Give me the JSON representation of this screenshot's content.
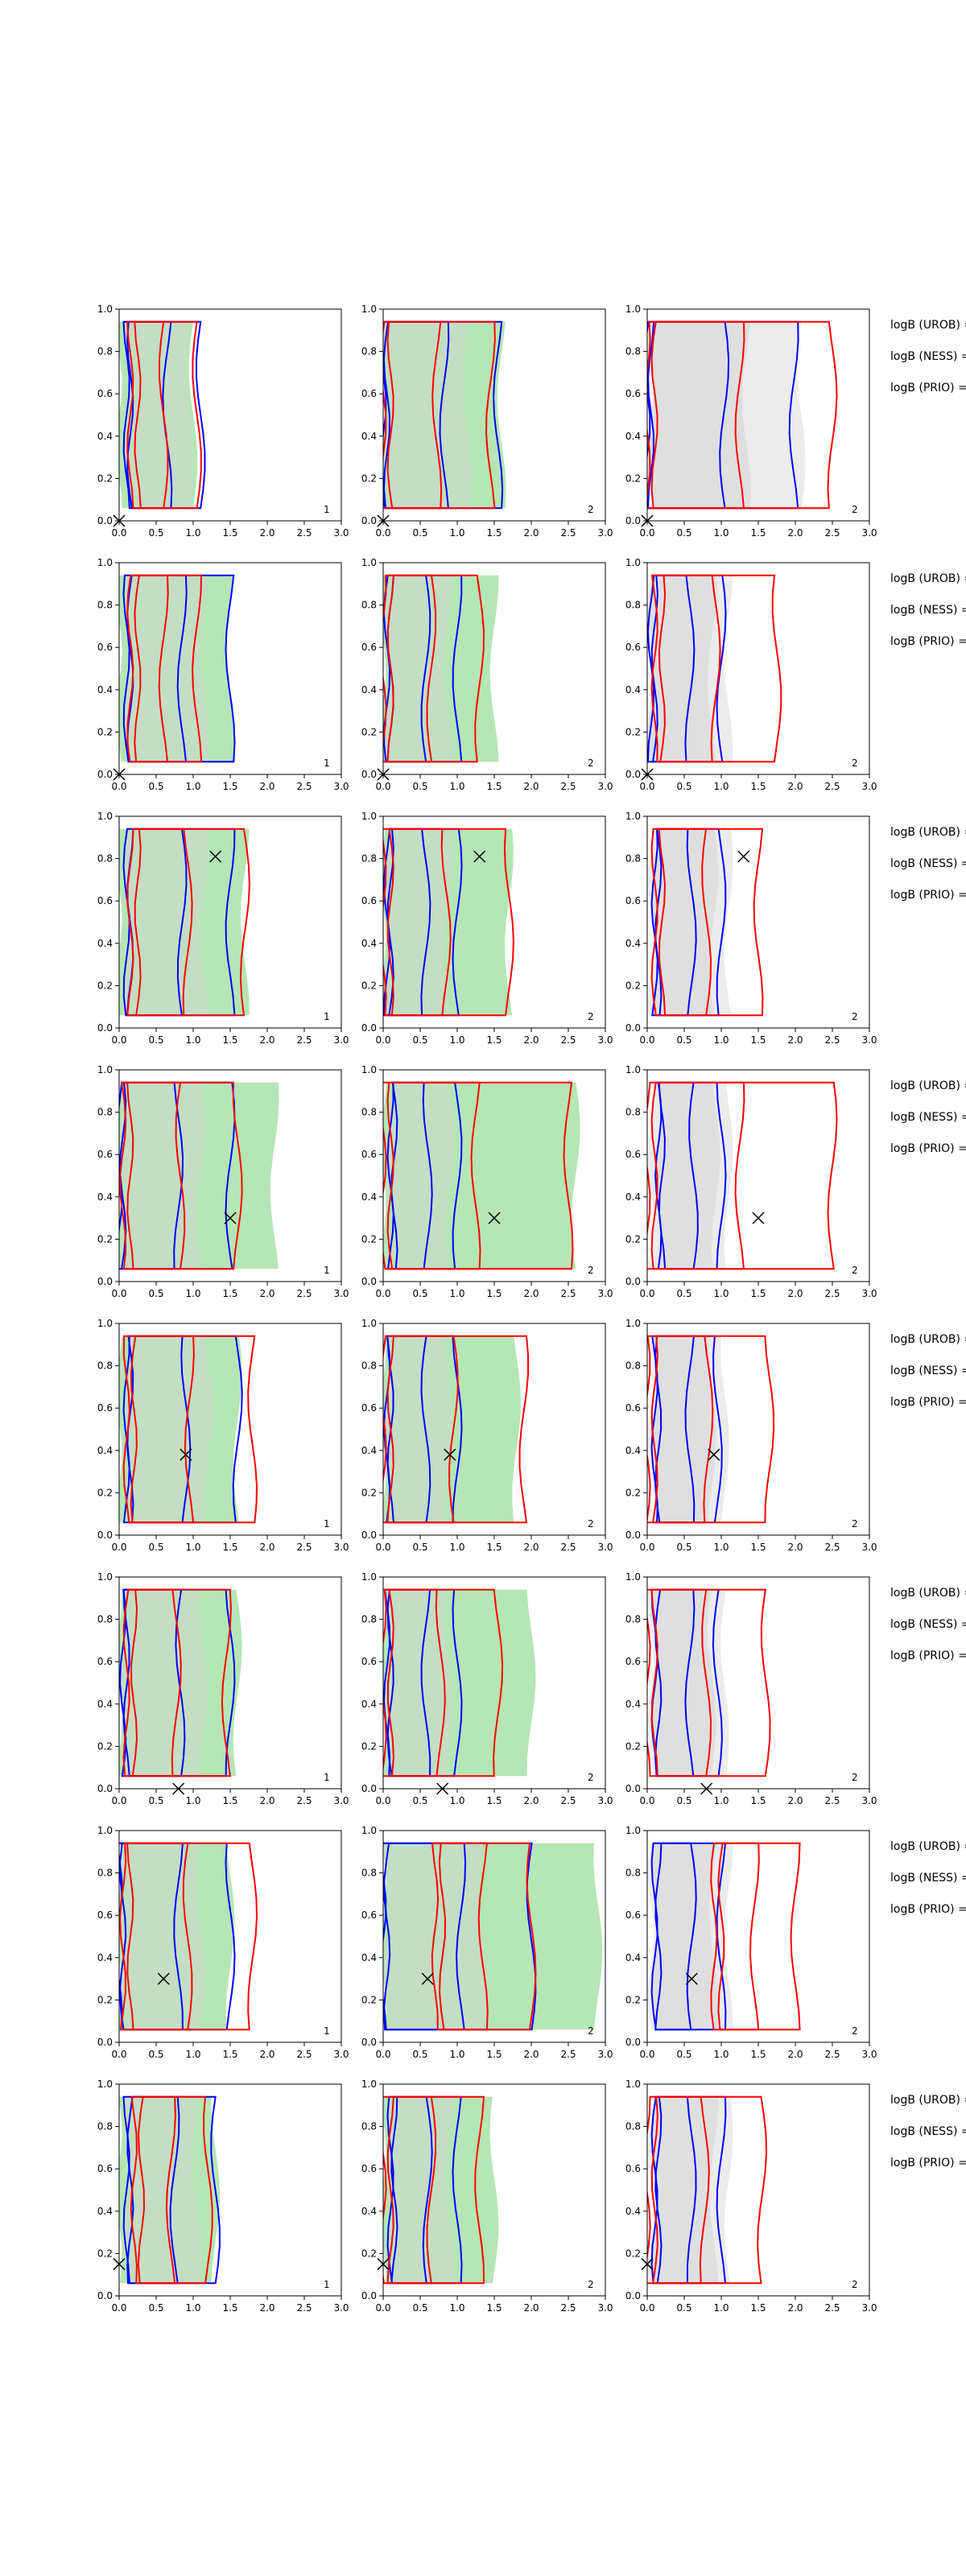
{
  "chart_data": {
    "type": "contour",
    "grid": false,
    "xlim": [
      0,
      3
    ],
    "ylim": [
      0,
      1
    ],
    "x_ticks": [
      "0.0",
      "0.5",
      "1.0",
      "1.5",
      "2.0",
      "2.5",
      "3.0"
    ],
    "y_ticks": [
      "0.0",
      "0.2",
      "0.4",
      "0.6",
      "0.8",
      "1.0"
    ],
    "column_labels": [
      "1",
      "2",
      "2"
    ],
    "side_labels": [
      "logB (UROB) =",
      "logB (NESS) =",
      "logB (PRIO) ="
    ],
    "colors": {
      "green_fill": "#b5e6b5",
      "grey_fill": "#d4d4d4",
      "blue_line": "#0000ff",
      "red_line": "#ff0000",
      "marker": "#000000"
    },
    "rows": [
      {
        "marker": [
          0.0,
          0.0
        ],
        "blue": [
          [
            0.1,
            1.1
          ],
          [
            0.0,
            1.55
          ],
          [
            0.0,
            1.98
          ]
        ],
        "red": [
          [
            0.15,
            1.05
          ],
          [
            0.0,
            1.45
          ],
          [
            0.0,
            2.5
          ]
        ],
        "green": [
          [
            0.0,
            1.0
          ],
          [
            0.0,
            1.6
          ],
          [
            null,
            null
          ]
        ]
      },
      {
        "marker": [
          0.0,
          0.0
        ],
        "blue": [
          [
            0.1,
            1.5
          ],
          [
            0.05,
            1.0
          ],
          [
            0.05,
            1.0
          ]
        ],
        "red": [
          [
            0.15,
            1.05
          ],
          [
            0.0,
            1.3
          ],
          [
            0.1,
            1.75
          ]
        ],
        "green": [
          [
            0.0,
            1.5
          ],
          [
            0.0,
            1.5
          ],
          [
            null,
            null
          ]
        ]
      },
      {
        "marker": [
          1.3,
          0.81
        ],
        "blue": [
          [
            0.1,
            1.5
          ],
          [
            0.05,
            1.0
          ],
          [
            0.1,
            1.0
          ]
        ],
        "red": [
          [
            0.15,
            1.7
          ],
          [
            0.0,
            1.7
          ],
          [
            0.1,
            1.5
          ]
        ],
        "green": [
          [
            0.0,
            1.7
          ],
          [
            0.0,
            1.7
          ],
          [
            null,
            null
          ]
        ]
      },
      {
        "marker": [
          1.5,
          0.3
        ],
        "blue": [
          [
            0.0,
            1.5
          ],
          [
            0.1,
            1.0
          ],
          [
            0.15,
            1.0
          ]
        ],
        "red": [
          [
            0.05,
            1.6
          ],
          [
            0.0,
            2.5
          ],
          [
            0.0,
            2.5
          ]
        ],
        "green": [
          [
            0.0,
            2.1
          ],
          [
            0.0,
            2.6
          ],
          [
            null,
            null
          ]
        ]
      },
      {
        "marker": [
          0.9,
          0.38
        ],
        "blue": [
          [
            0.1,
            1.6
          ],
          [
            0.05,
            1.0
          ],
          [
            0.1,
            0.95
          ]
        ],
        "red": [
          [
            0.1,
            1.8
          ],
          [
            0.0,
            1.9
          ],
          [
            0.0,
            1.65
          ]
        ],
        "green": [
          [
            0.0,
            1.6
          ],
          [
            0.0,
            1.8
          ],
          [
            null,
            null
          ]
        ]
      },
      {
        "marker": [
          0.8,
          0.0
        ],
        "blue": [
          [
            0.05,
            1.5
          ],
          [
            0.05,
            1.0
          ],
          [
            0.1,
            0.95
          ]
        ],
        "red": [
          [
            0.1,
            1.45
          ],
          [
            0.0,
            1.55
          ],
          [
            0.0,
            1.6
          ]
        ],
        "green": [
          [
            0.0,
            1.6
          ],
          [
            0.0,
            2.0
          ],
          [
            null,
            null
          ]
        ]
      },
      {
        "marker": [
          0.6,
          0.3
        ],
        "blue": [
          [
            0.0,
            1.5
          ],
          [
            0.0,
            2.0
          ],
          [
            0.1,
            1.0
          ]
        ],
        "red": [
          [
            0.05,
            1.8
          ],
          [
            0.7,
            2.0
          ],
          [
            0.9,
            2.0
          ]
        ],
        "green": [
          [
            0.0,
            1.5
          ],
          [
            0.0,
            2.9
          ],
          [
            null,
            null
          ]
        ]
      },
      {
        "marker": [
          0.0,
          0.15
        ],
        "blue": [
          [
            0.1,
            1.3
          ],
          [
            0.1,
            1.0
          ],
          [
            0.1,
            1.0
          ]
        ],
        "red": [
          [
            0.2,
            1.2
          ],
          [
            0.0,
            1.3
          ],
          [
            0.0,
            1.55
          ]
        ],
        "green": [
          [
            0.0,
            1.3
          ],
          [
            0.0,
            1.5
          ],
          [
            null,
            null
          ]
        ]
      }
    ]
  }
}
